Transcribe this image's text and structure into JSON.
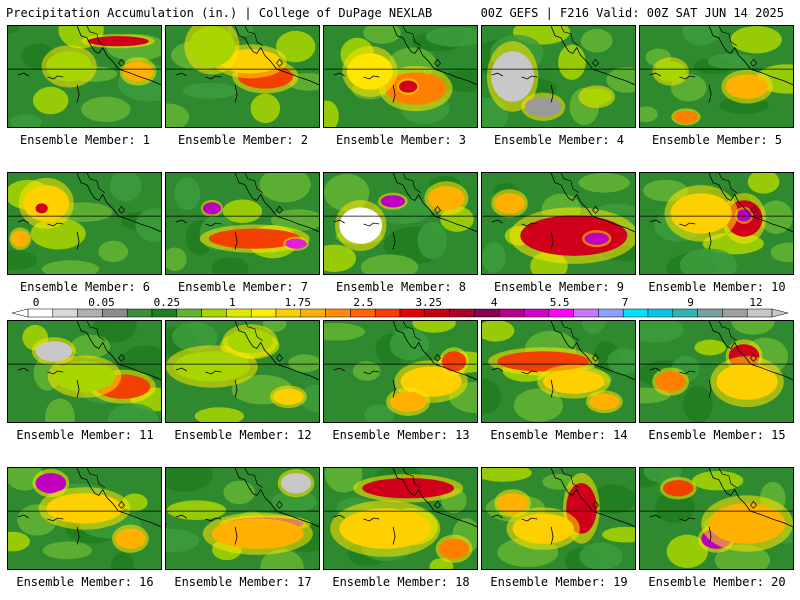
{
  "header": {
    "title_left": "Precipitation Accumulation (in.) | College of DuPage NEXLAB",
    "title_right": "00Z GEFS | F216 Valid: 00Z SAT JUN 14 2025"
  },
  "panels": [
    {
      "label": "Ensemble Member: 1",
      "hot": [
        [
          0.72,
          0.15,
          0.2,
          0.05,
          "#d0001a"
        ],
        [
          0.85,
          0.45,
          0.1,
          0.1,
          "#ffb000"
        ],
        [
          0.4,
          0.4,
          0.15,
          0.15,
          "#a9d500"
        ]
      ]
    },
    {
      "label": "Ensemble Member: 2",
      "hot": [
        [
          0.65,
          0.5,
          0.18,
          0.12,
          "#f24000"
        ],
        [
          0.55,
          0.35,
          0.2,
          0.12,
          "#ffd000"
        ],
        [
          0.3,
          0.2,
          0.15,
          0.2,
          "#a9d500"
        ]
      ]
    },
    {
      "label": "Ensemble Member: 3",
      "hot": [
        [
          0.6,
          0.62,
          0.2,
          0.16,
          "#ff8000"
        ],
        [
          0.55,
          0.6,
          0.06,
          0.06,
          "#d0001a"
        ],
        [
          0.3,
          0.45,
          0.15,
          0.18,
          "#ffe600"
        ]
      ]
    },
    {
      "label": "Ensemble Member: 4",
      "hot": [
        [
          0.2,
          0.5,
          0.14,
          0.25,
          "#c8c8c8"
        ],
        [
          0.4,
          0.8,
          0.12,
          0.1,
          "#9a9a9a"
        ],
        [
          0.75,
          0.7,
          0.1,
          0.08,
          "#a9d500"
        ]
      ]
    },
    {
      "label": "Ensemble Member: 5",
      "hot": [
        [
          0.7,
          0.6,
          0.14,
          0.12,
          "#ffb000"
        ],
        [
          0.3,
          0.9,
          0.08,
          0.06,
          "#ff8000"
        ],
        [
          0.2,
          0.45,
          0.1,
          0.1,
          "#a9d500"
        ]
      ]
    },
    {
      "label": "Ensemble Member: 6",
      "hot": [
        [
          0.25,
          0.3,
          0.15,
          0.18,
          "#ffd000"
        ],
        [
          0.22,
          0.35,
          0.04,
          0.05,
          "#d0001a"
        ],
        [
          0.08,
          0.65,
          0.06,
          0.08,
          "#ffb000"
        ]
      ]
    },
    {
      "label": "Ensemble Member: 7",
      "hot": [
        [
          0.58,
          0.65,
          0.3,
          0.1,
          "#f24000"
        ],
        [
          0.3,
          0.35,
          0.06,
          0.06,
          "#c000c0"
        ],
        [
          0.85,
          0.7,
          0.07,
          0.05,
          "#e020e0"
        ]
      ]
    },
    {
      "label": "Ensemble Member: 8",
      "hot": [
        [
          0.24,
          0.52,
          0.14,
          0.18,
          "#ffffff"
        ],
        [
          0.45,
          0.28,
          0.08,
          0.06,
          "#c000c0"
        ],
        [
          0.8,
          0.25,
          0.12,
          0.12,
          "#ffb000"
        ]
      ]
    },
    {
      "label": "Ensemble Member: 9",
      "hot": [
        [
          0.6,
          0.62,
          0.35,
          0.2,
          "#d0001a"
        ],
        [
          0.75,
          0.65,
          0.08,
          0.06,
          "#c000c0"
        ],
        [
          0.18,
          0.3,
          0.1,
          0.1,
          "#ffb000"
        ]
      ]
    },
    {
      "label": "Ensemble Member: 10",
      "hot": [
        [
          0.68,
          0.45,
          0.12,
          0.18,
          "#d0001a"
        ],
        [
          0.68,
          0.42,
          0.05,
          0.06,
          "#c000c0"
        ],
        [
          0.4,
          0.4,
          0.2,
          0.2,
          "#ffd000"
        ]
      ]
    },
    {
      "label": "Ensemble Member: 11",
      "hot": [
        [
          0.75,
          0.65,
          0.18,
          0.12,
          "#f24000"
        ],
        [
          0.3,
          0.3,
          0.12,
          0.1,
          "#c8c8c8"
        ],
        [
          0.5,
          0.55,
          0.2,
          0.15,
          "#a9d500"
        ]
      ]
    },
    {
      "label": "Ensemble Member: 12",
      "hot": [
        [
          0.3,
          0.45,
          0.25,
          0.15,
          "#a9d500"
        ],
        [
          0.8,
          0.75,
          0.1,
          0.08,
          "#ffd000"
        ],
        [
          0.55,
          0.2,
          0.15,
          0.12,
          "#a9d500"
        ]
      ]
    },
    {
      "label": "Ensemble Member: 13",
      "hot": [
        [
          0.7,
          0.6,
          0.2,
          0.15,
          "#ffd000"
        ],
        [
          0.55,
          0.8,
          0.12,
          0.1,
          "#ffb000"
        ],
        [
          0.85,
          0.4,
          0.08,
          0.1,
          "#f24000"
        ]
      ]
    },
    {
      "label": "Ensemble Member: 14",
      "hot": [
        [
          0.4,
          0.4,
          0.3,
          0.1,
          "#f24000"
        ],
        [
          0.6,
          0.6,
          0.2,
          0.12,
          "#ffd000"
        ],
        [
          0.8,
          0.8,
          0.1,
          0.08,
          "#ffb000"
        ]
      ]
    },
    {
      "label": "Ensemble Member: 15",
      "hot": [
        [
          0.68,
          0.35,
          0.1,
          0.12,
          "#d0001a"
        ],
        [
          0.7,
          0.6,
          0.2,
          0.18,
          "#ffd000"
        ],
        [
          0.2,
          0.6,
          0.1,
          0.1,
          "#ff8000"
        ]
      ]
    },
    {
      "label": "Ensemble Member: 16",
      "hot": [
        [
          0.28,
          0.15,
          0.1,
          0.1,
          "#c000c0"
        ],
        [
          0.5,
          0.4,
          0.25,
          0.15,
          "#ffd000"
        ],
        [
          0.8,
          0.7,
          0.1,
          0.1,
          "#ffb000"
        ]
      ]
    },
    {
      "label": "Ensemble Member: 17",
      "hot": [
        [
          0.65,
          0.55,
          0.25,
          0.06,
          "#c000c0"
        ],
        [
          0.6,
          0.65,
          0.3,
          0.15,
          "#ffb000"
        ],
        [
          0.85,
          0.15,
          0.1,
          0.1,
          "#c8c8c8"
        ]
      ]
    },
    {
      "label": "Ensemble Member: 18",
      "hot": [
        [
          0.55,
          0.2,
          0.3,
          0.1,
          "#d0001a"
        ],
        [
          0.4,
          0.6,
          0.3,
          0.2,
          "#ffd000"
        ],
        [
          0.85,
          0.8,
          0.1,
          0.1,
          "#ff8000"
        ]
      ]
    },
    {
      "label": "Ensemble Member: 19",
      "hot": [
        [
          0.65,
          0.4,
          0.1,
          0.25,
          "#d0001a"
        ],
        [
          0.4,
          0.6,
          0.2,
          0.15,
          "#ffd000"
        ],
        [
          0.2,
          0.35,
          0.1,
          0.1,
          "#ffb000"
        ]
      ]
    },
    {
      "label": "Ensemble Member: 20",
      "hot": [
        [
          0.5,
          0.7,
          0.1,
          0.1,
          "#c000c0"
        ],
        [
          0.7,
          0.55,
          0.25,
          0.2,
          "#ffb000"
        ],
        [
          0.25,
          0.2,
          0.1,
          0.08,
          "#f24000"
        ]
      ]
    }
  ],
  "colorbar": {
    "labels": [
      "0",
      "0.05",
      "0.25",
      "1",
      "1.75",
      "2.5",
      "3.25",
      "4",
      "5.5",
      "7",
      "9",
      "12"
    ],
    "colors": [
      "#ffffff",
      "#d9d9d9",
      "#b0b0b0",
      "#8c8c8c",
      "#3c8c3c",
      "#1e7d1e",
      "#64b432",
      "#a9d500",
      "#dceb00",
      "#fff000",
      "#ffd000",
      "#ffb000",
      "#ff8c00",
      "#ff6400",
      "#ff3c00",
      "#e60000",
      "#c80014",
      "#aa0028",
      "#8c0050",
      "#b4008c",
      "#d200c8",
      "#ff00ff",
      "#c878ff",
      "#8ca0ff",
      "#00e0ff",
      "#00c8e6",
      "#32b4b4",
      "#78a0a0",
      "#a0a0a0",
      "#c8c8c8"
    ]
  }
}
